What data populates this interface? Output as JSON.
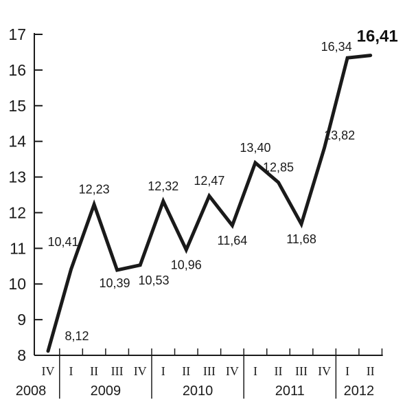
{
  "chart_data": {
    "type": "line",
    "title": "",
    "xlabel": "",
    "ylabel": "",
    "ylim": [
      8,
      17
    ],
    "yticks": [
      8,
      9,
      10,
      11,
      12,
      13,
      14,
      15,
      16,
      17
    ],
    "ytick_labels": [
      "8",
      "9",
      "10",
      "11",
      "12",
      "13",
      "14",
      "15",
      "16",
      "17"
    ],
    "grid": false,
    "line_color": "#1a1a1a",
    "quarters": [
      "IV",
      "I",
      "II",
      "III",
      "IV",
      "I",
      "II",
      "III",
      "IV",
      "I",
      "II",
      "III",
      "IV",
      "I",
      "II"
    ],
    "years": [
      {
        "label": "2008",
        "quarters": 1
      },
      {
        "label": "2009",
        "quarters": 4
      },
      {
        "label": "2010",
        "quarters": 4
      },
      {
        "label": "2011",
        "quarters": 4
      },
      {
        "label": "2012",
        "quarters": 2
      }
    ],
    "series": [
      {
        "values": [
          8.12,
          10.41,
          12.23,
          10.39,
          10.53,
          12.32,
          10.96,
          12.47,
          11.64,
          13.4,
          12.85,
          11.68,
          13.82,
          16.34,
          16.41
        ],
        "labels": [
          "8,12",
          "10,41",
          "12,23",
          "10,39",
          "10,53",
          "12,32",
          "10,96",
          "12,47",
          "11,64",
          "13,40",
          "12,85",
          "11,68",
          "13,82",
          "16,34",
          "16,41"
        ],
        "highlight_last": true
      }
    ]
  }
}
